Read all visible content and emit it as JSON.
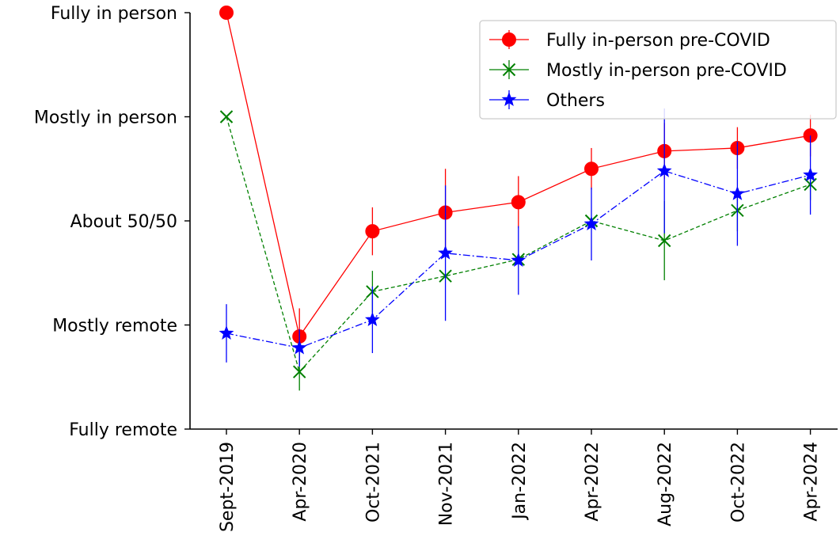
{
  "chart_data": {
    "type": "line",
    "title": "",
    "xlabel": "",
    "ylabel": "",
    "categories": [
      "Sept-2019",
      "Apr-2020",
      "Oct-2021",
      "Nov-2021",
      "Jan-2022",
      "Apr-2022",
      "Aug-2022",
      "Oct-2022",
      "Apr-2024"
    ],
    "y_tick_labels": [
      "Fully remote",
      "Mostly remote",
      "About 50/50",
      "Mostly in person",
      "Fully in person"
    ],
    "ylim": [
      0,
      4
    ],
    "grid": false,
    "legend_position": "top-right",
    "error_bars": true,
    "series": [
      {
        "name": "Fully in-person pre-COVID",
        "color": "#ff0000",
        "marker": "circle",
        "line_style": "solid",
        "values": [
          4.0,
          0.89,
          1.9,
          2.08,
          2.18,
          2.5,
          2.67,
          2.7,
          2.82
        ],
        "error": [
          0.0,
          0.27,
          0.23,
          0.42,
          0.25,
          0.2,
          0.27,
          0.2,
          0.2
        ]
      },
      {
        "name": "Mostly in-person pre-COVID",
        "color": "#008000",
        "marker": "x",
        "line_style": "dashed",
        "values": [
          3.0,
          0.55,
          1.32,
          1.47,
          1.63,
          2.0,
          1.81,
          2.1,
          2.35
        ],
        "error": [
          0.0,
          0.18,
          0.2,
          0.0,
          0.0,
          0.0,
          0.38,
          0.2,
          0.15
        ]
      },
      {
        "name": "Others",
        "color": "#0000ff",
        "marker": "star",
        "line_style": "dashdot",
        "values": [
          0.92,
          0.78,
          1.05,
          1.69,
          1.62,
          1.97,
          2.48,
          2.26,
          2.44
        ],
        "error": [
          0.28,
          0.18,
          0.32,
          0.65,
          0.33,
          0.35,
          0.6,
          0.5,
          0.38
        ]
      }
    ]
  }
}
